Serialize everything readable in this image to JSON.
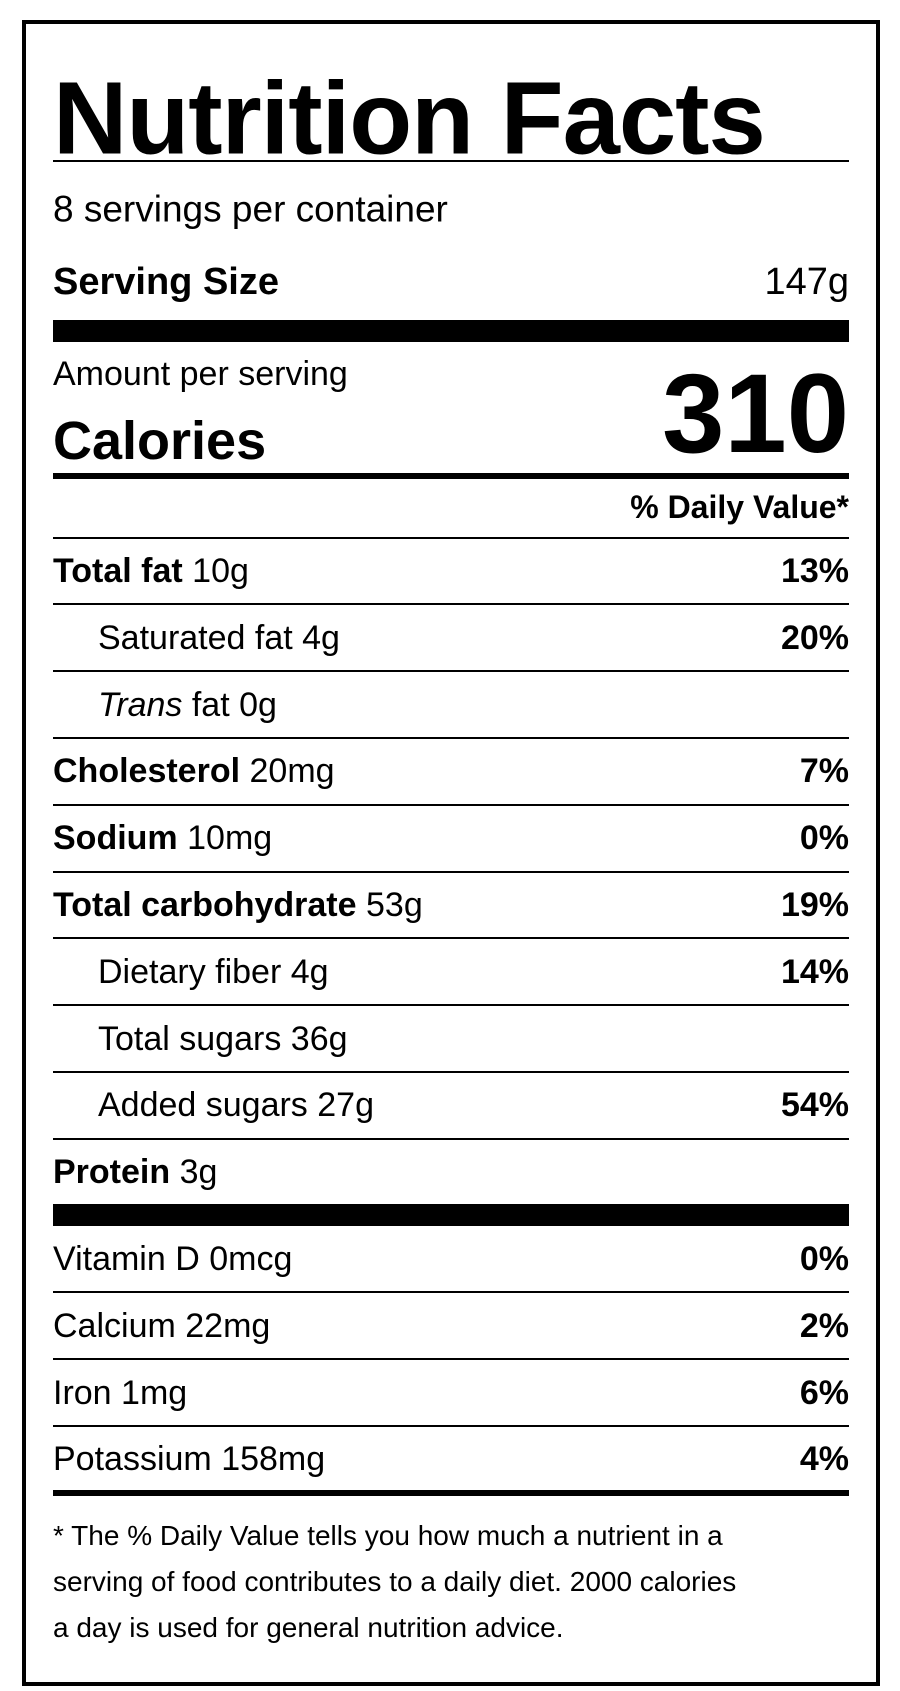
{
  "title": "Nutrition Facts",
  "servings": "8 servings per container",
  "serving_size": {
    "label": "Serving Size",
    "value": "147g"
  },
  "amount_per_serving": "Amount per serving",
  "calories": {
    "label": "Calories",
    "value": "310"
  },
  "daily_value_header": "% Daily Value*",
  "nutrients": [
    {
      "name": "Total fat",
      "amount": "10g",
      "dv": "13%",
      "style": "bold",
      "indent": false
    },
    {
      "name": "Saturated fat",
      "amount": "4g",
      "dv": "20%",
      "style": "normal",
      "indent": true
    },
    {
      "name": "Trans",
      "amount": "fat 0g",
      "style": "italic",
      "indent": true
    },
    {
      "name": "Cholesterol",
      "amount": "20mg",
      "dv": "7%",
      "style": "bold",
      "indent": false
    },
    {
      "name": "Sodium",
      "amount": "10mg",
      "dv": "0%",
      "style": "bold",
      "indent": false
    },
    {
      "name": "Total carbohydrate",
      "amount": "53g",
      "dv": "19%",
      "style": "bold",
      "indent": false
    },
    {
      "name": "Dietary fiber",
      "amount": "4g",
      "dv": "14%",
      "style": "normal",
      "indent": true
    },
    {
      "name": "Total sugars",
      "amount": "36g",
      "style": "normal",
      "indent": true
    },
    {
      "name": "Added sugars",
      "amount": "27g",
      "dv": "54%",
      "style": "normal",
      "indent": true
    },
    {
      "name": "Protein",
      "amount": "3g",
      "style": "bold",
      "indent": false
    }
  ],
  "vitamins": [
    {
      "name": "Vitamin D",
      "amount": "0mcg",
      "dv": "0%"
    },
    {
      "name": "Calcium",
      "amount": "22mg",
      "dv": "2%"
    },
    {
      "name": "Iron",
      "amount": "1mg",
      "dv": "6%"
    },
    {
      "name": "Potassium",
      "amount": "158mg",
      "dv": "4%"
    }
  ],
  "footnote": [
    "* The % Daily Value tells you how much a nutrient in a",
    "serving of food contributes to a daily diet. 2000 calories",
    "a day is used for general nutrition advice."
  ]
}
